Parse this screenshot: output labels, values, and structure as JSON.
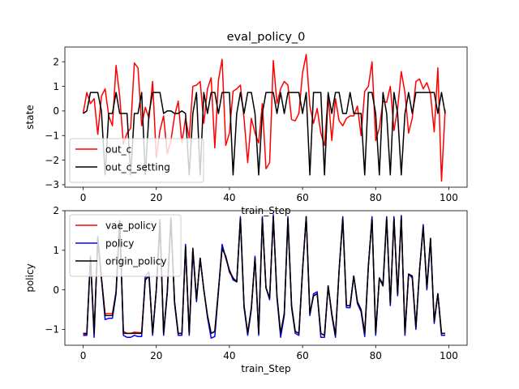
{
  "figure": {
    "title": "eval_policy_0"
  },
  "chart_data": [
    {
      "type": "line",
      "title": "eval_policy_0",
      "xlabel": "train_Step",
      "ylabel": "state",
      "xlim": [
        -5,
        105
      ],
      "ylim": [
        -3.1,
        2.6
      ],
      "xticks": [
        0,
        20,
        40,
        60,
        80,
        100
      ],
      "yticks": [
        -3,
        -2,
        -1,
        0,
        1,
        2
      ],
      "grid": false,
      "legend_position": "lower-left",
      "series": [
        {
          "name": "out_c",
          "color": "#ff0000",
          "x": [
            0,
            1,
            2,
            3,
            4,
            5,
            6,
            7,
            8,
            9,
            10,
            11,
            12,
            13,
            14,
            15,
            16,
            17,
            18,
            19,
            20,
            21,
            22,
            23,
            24,
            25,
            26,
            27,
            28,
            29,
            30,
            31,
            32,
            33,
            34,
            35,
            36,
            37,
            38,
            39,
            40,
            41,
            42,
            43,
            44,
            45,
            46,
            47,
            48,
            49,
            50,
            51,
            52,
            53,
            54,
            55,
            56,
            57,
            58,
            59,
            60,
            61,
            62,
            63,
            64,
            65,
            66,
            67,
            68,
            69,
            70,
            71,
            72,
            73,
            74,
            75,
            76,
            77,
            78,
            79,
            80,
            81,
            82,
            83,
            84,
            85,
            86,
            87,
            88,
            89,
            90,
            91,
            92,
            93,
            94,
            95,
            96,
            97,
            98,
            99
          ],
          "y": [
            -0.1,
            0.75,
            0.3,
            0.5,
            -0.95,
            0.6,
            0.9,
            -0.2,
            -0.6,
            1.85,
            0.6,
            -1.35,
            -0.9,
            -0.7,
            1.95,
            1.75,
            -0.6,
            0.15,
            -0.3,
            1.2,
            -1.9,
            -0.8,
            -0.2,
            -1.75,
            -1.2,
            -0.2,
            0.4,
            -1.3,
            -0.3,
            -1.1,
            1.0,
            1.05,
            1.2,
            -0.5,
            0.9,
            1.35,
            -1.5,
            1.25,
            2.1,
            -1.4,
            -0.9,
            0.8,
            0.9,
            1.05,
            -0.3,
            -2.1,
            -0.3,
            -0.9,
            -1.3,
            0.3,
            -2.35,
            -2.1,
            2.05,
            0.3,
            0.9,
            1.2,
            1.05,
            -0.35,
            -0.4,
            -0.1,
            1.55,
            2.3,
            0.2,
            -0.5,
            0.1,
            -0.9,
            -1.4,
            0.65,
            -1.2,
            0.5,
            -0.4,
            -0.6,
            -0.3,
            -0.2,
            -0.2,
            0.2,
            -1.0,
            0.8,
            1.0,
            2.0,
            -1.2,
            -0.7,
            0.4,
            0.35,
            1.0,
            -0.8,
            0.1,
            1.6,
            0.75,
            -0.9,
            -0.3,
            1.2,
            1.3,
            0.9,
            1.15,
            0.7,
            -0.85,
            1.75,
            -2.85,
            0.05
          ]
        },
        {
          "name": "out_c_setting",
          "color": "#000000",
          "x": [
            0,
            1,
            2,
            3,
            4,
            5,
            6,
            7,
            8,
            9,
            10,
            11,
            12,
            13,
            14,
            15,
            16,
            17,
            18,
            19,
            20,
            21,
            22,
            23,
            24,
            25,
            26,
            27,
            28,
            29,
            30,
            31,
            32,
            33,
            34,
            35,
            36,
            37,
            38,
            39,
            40,
            41,
            42,
            43,
            44,
            45,
            46,
            47,
            48,
            49,
            50,
            51,
            52,
            53,
            54,
            55,
            56,
            57,
            58,
            59,
            60,
            61,
            62,
            63,
            64,
            65,
            66,
            67,
            68,
            69,
            70,
            71,
            72,
            73,
            74,
            75,
            76,
            77,
            78,
            79,
            80,
            81,
            82,
            83,
            84,
            85,
            86,
            87,
            88,
            89,
            90,
            91,
            92,
            93,
            94,
            95,
            96,
            97,
            98,
            99
          ],
          "y": [
            -0.1,
            0.0,
            0.75,
            0.75,
            0.75,
            0.0,
            -2.6,
            -0.1,
            -0.1,
            0.75,
            -0.1,
            -0.1,
            -0.1,
            -2.6,
            -0.1,
            -0.1,
            0.75,
            -2.6,
            -0.1,
            0.75,
            0.75,
            0.75,
            -0.1,
            0.0,
            0.0,
            -0.1,
            -0.1,
            0.0,
            -0.1,
            -2.6,
            -0.1,
            0.75,
            -2.6,
            0.75,
            -0.1,
            0.75,
            0.75,
            -0.1,
            0.75,
            0.75,
            0.75,
            -2.6,
            -0.1,
            0.75,
            -0.1,
            0.75,
            0.75,
            -0.1,
            -2.6,
            -0.1,
            0.75,
            0.75,
            0.75,
            -0.1,
            0.75,
            -0.1,
            0.75,
            0.75,
            0.75,
            0.75,
            -0.1,
            0.75,
            -2.6,
            0.75,
            0.75,
            0.75,
            -2.6,
            0.75,
            -0.1,
            0.75,
            0.75,
            -0.1,
            -0.1,
            0.75,
            -0.1,
            -0.1,
            -0.1,
            -2.6,
            0.75,
            0.75,
            -0.1,
            -2.6,
            0.75,
            -0.1,
            -2.6,
            0.75,
            -0.1,
            -2.6,
            -0.1,
            0.75,
            -0.1,
            0.75,
            0.75,
            0.75,
            0.75,
            0.75,
            0.75,
            -0.1,
            0.75,
            -0.1
          ]
        }
      ]
    },
    {
      "type": "line",
      "title": "",
      "xlabel": "train_Step",
      "ylabel": "policy",
      "xlim": [
        -5,
        105
      ],
      "ylim": [
        -1.4,
        2.0
      ],
      "xticks": [
        0,
        20,
        40,
        60,
        80,
        100
      ],
      "yticks": [
        -1,
        0,
        1,
        2
      ],
      "grid": false,
      "legend_position": "top-left",
      "series": [
        {
          "name": "vae_policy",
          "color": "#ff0000",
          "x": [
            0,
            1,
            2,
            3,
            4,
            5,
            6,
            7,
            8,
            9,
            10,
            11,
            12,
            13,
            14,
            15,
            16,
            17,
            18,
            19,
            20,
            21,
            22,
            23,
            24,
            25,
            26,
            27,
            28,
            29,
            30,
            31,
            32,
            33,
            34,
            35,
            36,
            37,
            38,
            39,
            40,
            41,
            42,
            43,
            44,
            45,
            46,
            47,
            48,
            49,
            50,
            51,
            52,
            53,
            54,
            55,
            56,
            57,
            58,
            59,
            60,
            61,
            62,
            63,
            64,
            65,
            66,
            67,
            68,
            69,
            70,
            71,
            72,
            73,
            74,
            75,
            76,
            77,
            78,
            79,
            80,
            81,
            82,
            83,
            84,
            85,
            86,
            87,
            88,
            89,
            90,
            91,
            92,
            93,
            94,
            95,
            96,
            97,
            98,
            99
          ],
          "y": [
            -1.12,
            -1.12,
            0.85,
            -1.12,
            1.3,
            0.3,
            -0.6,
            -0.6,
            -0.6,
            -0.05,
            1.75,
            -1.05,
            -1.1,
            -1.1,
            -1.07,
            -1.08,
            -1.08,
            0.3,
            0.35,
            -1.1,
            0.0,
            1.7,
            -1.1,
            -0.05,
            1.75,
            -0.3,
            -1.1,
            -1.1,
            1.05,
            -1.1,
            1.05,
            -0.25,
            0.8,
            0.0,
            -0.65,
            -1.1,
            -1.05,
            0.0,
            1.05,
            0.85,
            0.5,
            0.3,
            0.2,
            1.8,
            -0.4,
            -1.1,
            -0.45,
            0.8,
            -1.1,
            1.8,
            0.05,
            -0.2,
            1.85,
            -0.15,
            -1.1,
            -0.6,
            1.8,
            -0.4,
            -1.05,
            -1.1,
            0.5,
            1.85,
            -0.6,
            -0.15,
            -0.1,
            -1.1,
            -1.15,
            0.1,
            -0.6,
            -1.15,
            0.5,
            1.8,
            -0.4,
            -0.4,
            0.35,
            -0.3,
            -0.5,
            -1.1,
            0.6,
            1.8,
            -1.1,
            0.3,
            0.1,
            1.8,
            -0.35,
            1.8,
            -0.1,
            1.8,
            -1.1,
            0.4,
            0.35,
            -0.95,
            0.5,
            1.6,
            0.05,
            1.3,
            -0.8,
            -0.1,
            -1.1,
            -1.1
          ]
        },
        {
          "name": "policy",
          "color": "#0000ff",
          "x": [
            0,
            1,
            2,
            3,
            4,
            5,
            6,
            7,
            8,
            9,
            10,
            11,
            12,
            13,
            14,
            15,
            16,
            17,
            18,
            19,
            20,
            21,
            22,
            23,
            24,
            25,
            26,
            27,
            28,
            29,
            30,
            31,
            32,
            33,
            34,
            35,
            36,
            37,
            38,
            39,
            40,
            41,
            42,
            43,
            44,
            45,
            46,
            47,
            48,
            49,
            50,
            51,
            52,
            53,
            54,
            55,
            56,
            57,
            58,
            59,
            60,
            61,
            62,
            63,
            64,
            65,
            66,
            67,
            68,
            69,
            70,
            71,
            72,
            73,
            74,
            75,
            76,
            77,
            78,
            79,
            80,
            81,
            82,
            83,
            84,
            85,
            86,
            87,
            88,
            89,
            90,
            91,
            92,
            93,
            94,
            95,
            96,
            97,
            98,
            99
          ],
          "y": [
            -1.15,
            -1.15,
            0.85,
            -1.2,
            1.35,
            0.3,
            -0.75,
            -0.72,
            -0.72,
            -0.1,
            1.75,
            -1.15,
            -1.2,
            -1.2,
            -1.15,
            -1.18,
            -1.18,
            0.35,
            0.45,
            -1.15,
            0.0,
            1.78,
            -1.15,
            -0.1,
            1.82,
            -0.35,
            -1.15,
            -1.15,
            1.15,
            -1.15,
            1.0,
            -0.3,
            0.8,
            0.0,
            -0.7,
            -1.22,
            -1.18,
            -0.05,
            1.15,
            0.8,
            0.5,
            0.25,
            0.2,
            1.85,
            -0.45,
            -1.15,
            -0.5,
            0.85,
            -1.15,
            1.85,
            0.05,
            -0.25,
            1.9,
            -0.2,
            -1.2,
            -0.65,
            1.85,
            -0.45,
            -1.1,
            -1.15,
            0.5,
            1.85,
            -0.65,
            -0.1,
            -0.05,
            -1.2,
            -1.2,
            0.1,
            -0.65,
            -1.2,
            0.5,
            1.85,
            -0.45,
            -0.45,
            0.35,
            -0.35,
            -0.55,
            -1.18,
            0.6,
            1.85,
            -1.15,
            0.3,
            0.15,
            1.85,
            -0.4,
            1.85,
            -0.15,
            1.88,
            -1.15,
            0.4,
            0.3,
            -1.0,
            0.5,
            1.65,
            0.0,
            1.25,
            -0.85,
            -0.1,
            -1.15,
            -1.15
          ]
        },
        {
          "name": "origin_policy",
          "color": "#000000",
          "x": [
            0,
            1,
            2,
            3,
            4,
            5,
            6,
            7,
            8,
            9,
            10,
            11,
            12,
            13,
            14,
            15,
            16,
            17,
            18,
            19,
            20,
            21,
            22,
            23,
            24,
            25,
            26,
            27,
            28,
            29,
            30,
            31,
            32,
            33,
            34,
            35,
            36,
            37,
            38,
            39,
            40,
            41,
            42,
            43,
            44,
            45,
            46,
            47,
            48,
            49,
            50,
            51,
            52,
            53,
            54,
            55,
            56,
            57,
            58,
            59,
            60,
            61,
            62,
            63,
            64,
            65,
            66,
            67,
            68,
            69,
            70,
            71,
            72,
            73,
            74,
            75,
            76,
            77,
            78,
            79,
            80,
            81,
            82,
            83,
            84,
            85,
            86,
            87,
            88,
            89,
            90,
            91,
            92,
            93,
            94,
            95,
            96,
            97,
            98,
            99
          ],
          "y": [
            -1.1,
            -1.1,
            0.8,
            -1.1,
            1.3,
            0.3,
            -0.65,
            -0.65,
            -0.65,
            -0.05,
            1.75,
            -1.1,
            -1.1,
            -1.1,
            -1.1,
            -1.1,
            -1.1,
            0.25,
            0.35,
            -1.1,
            0.0,
            1.7,
            -1.1,
            -0.05,
            1.8,
            -0.3,
            -1.1,
            -1.1,
            1.1,
            -1.1,
            1.05,
            -0.25,
            0.8,
            0.0,
            -0.65,
            -1.1,
            -1.05,
            0.0,
            1.05,
            0.85,
            0.45,
            0.3,
            0.2,
            1.8,
            -0.4,
            -1.1,
            -0.45,
            0.8,
            -1.1,
            1.8,
            0.05,
            -0.2,
            1.85,
            -0.15,
            -1.1,
            -0.6,
            1.8,
            -0.4,
            -1.05,
            -1.1,
            0.5,
            1.85,
            -0.6,
            -0.15,
            -0.1,
            -1.1,
            -1.15,
            0.1,
            -0.6,
            -1.15,
            0.5,
            1.8,
            -0.4,
            -0.4,
            0.35,
            -0.3,
            -0.5,
            -1.1,
            0.6,
            1.8,
            -1.1,
            0.3,
            0.1,
            1.8,
            -0.35,
            1.8,
            -0.1,
            1.85,
            -1.1,
            0.4,
            0.35,
            -0.95,
            0.5,
            1.6,
            0.05,
            1.3,
            -0.8,
            -0.1,
            -1.1,
            -1.1
          ]
        }
      ]
    }
  ]
}
